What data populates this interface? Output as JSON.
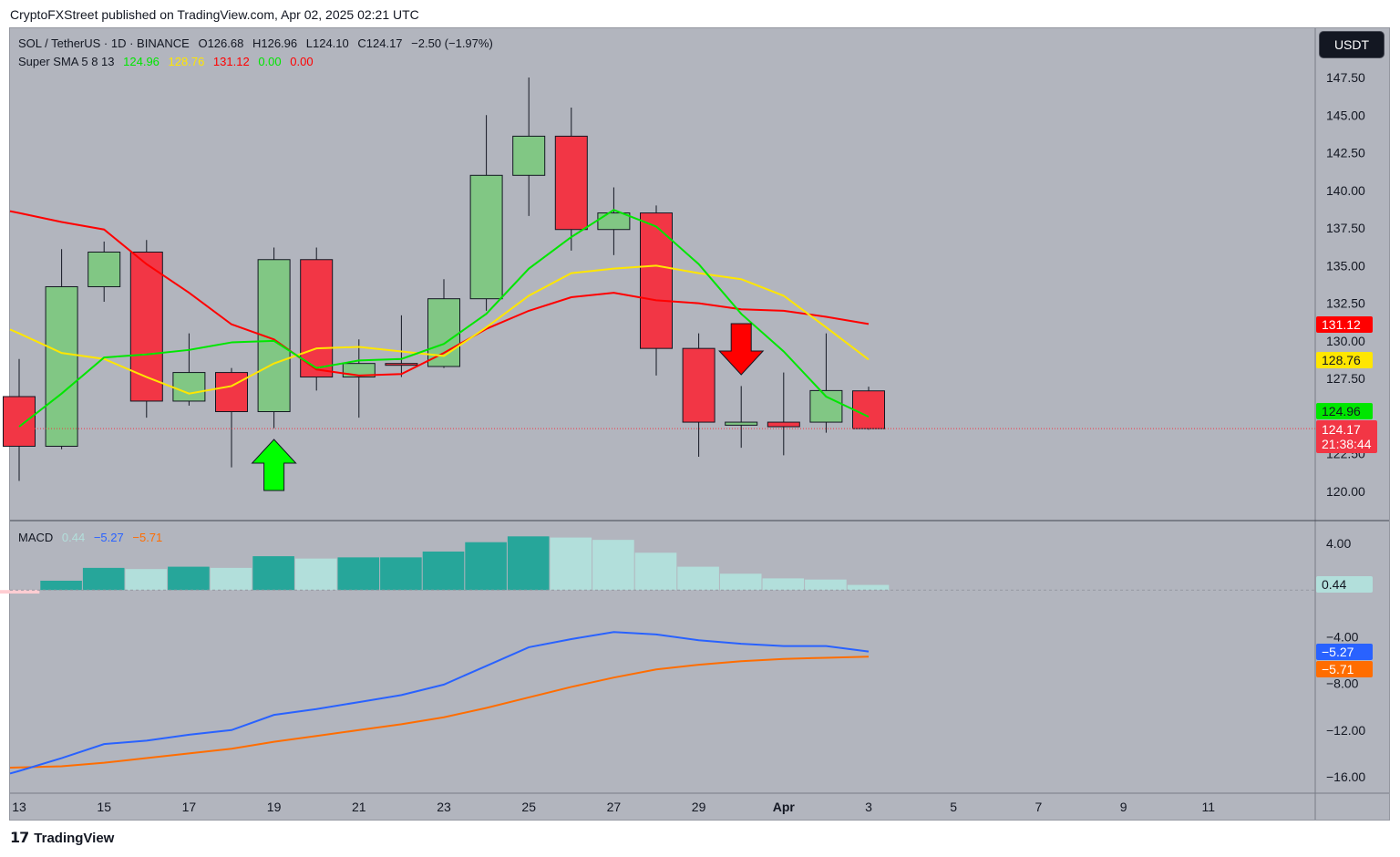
{
  "header": {
    "publisher_text": "CryptoFXStreet published on TradingView.com, Apr 02, 2025 02:21 UTC"
  },
  "legend": {
    "symbol": "SOL / TetherUS · 1D · BINANCE",
    "open": "O126.68",
    "high": "H126.96",
    "low": "L124.10",
    "close": "C124.17",
    "change": "−2.50 (−1.97%)",
    "indicator_name": "Super SMA 5 8 13",
    "sma_values": [
      "124.96",
      "128.76",
      "131.12",
      "0.00",
      "0.00"
    ],
    "macd_name": "MACD",
    "macd_values": [
      "0.44",
      "−5.27",
      "−5.71"
    ]
  },
  "currency_button": "USDT",
  "price_axis_labels": [
    "147.50",
    "145.00",
    "142.50",
    "140.00",
    "137.50",
    "135.00",
    "132.50",
    "130.00",
    "127.50",
    "122.50",
    "120.00"
  ],
  "macd_axis_labels": [
    "4.00",
    "−4.00",
    "−8.00",
    "−12.00",
    "−16.00"
  ],
  "time_axis_labels": [
    "13",
    "15",
    "17",
    "19",
    "21",
    "23",
    "25",
    "27",
    "29",
    "Apr",
    "3",
    "5",
    "7",
    "9",
    "11"
  ],
  "price_tags": {
    "sma13": "131.12",
    "sma8": "128.76",
    "sma5": "124.96",
    "last": "124.17",
    "countdown": "21:38:44",
    "macd_hist": "0.44",
    "macd_line": "−5.27",
    "macd_signal": "−5.71"
  },
  "colors": {
    "background": "#b2b5be",
    "up_candle": "#81c784",
    "down_candle": "#f23645",
    "sma5": "#00e600",
    "sma8": "#ffe600",
    "sma13": "#ff0000",
    "macd_line": "#2962ff",
    "signal_line": "#ff6d00",
    "hist_strong": "#26a69a",
    "hist_weak": "#b2dfdb"
  },
  "footer": {
    "brand": "TradingView"
  },
  "chart_data": {
    "type": "candlestick",
    "symbol": "SOL / TetherUS",
    "interval": "1D",
    "exchange": "BINANCE",
    "dates": [
      "Mar 13",
      "Mar 14",
      "Mar 15",
      "Mar 16",
      "Mar 17",
      "Mar 18",
      "Mar 19",
      "Mar 20",
      "Mar 21",
      "Mar 22",
      "Mar 23",
      "Mar 24",
      "Mar 25",
      "Mar 26",
      "Mar 27",
      "Mar 28",
      "Mar 29",
      "Mar 30",
      "Mar 31",
      "Apr 1",
      "Apr 2"
    ],
    "ohlc": [
      [
        126.3,
        128.8,
        120.7,
        123.0
      ],
      [
        123.0,
        136.1,
        122.8,
        133.6
      ],
      [
        133.6,
        136.6,
        132.6,
        135.9
      ],
      [
        135.9,
        136.7,
        124.9,
        126.0
      ],
      [
        126.0,
        130.5,
        125.7,
        127.9
      ],
      [
        127.9,
        128.2,
        121.6,
        125.3
      ],
      [
        125.3,
        136.2,
        124.2,
        135.4
      ],
      [
        135.4,
        136.2,
        126.7,
        127.6
      ],
      [
        127.6,
        130.1,
        124.9,
        128.5
      ],
      [
        128.5,
        131.7,
        127.6,
        128.4
      ],
      [
        128.3,
        134.1,
        128.2,
        132.8
      ],
      [
        132.8,
        145.0,
        132.0,
        141.0
      ],
      [
        141.0,
        147.5,
        138.3,
        143.6
      ],
      [
        143.6,
        145.5,
        136.0,
        137.4
      ],
      [
        137.4,
        140.2,
        135.7,
        138.5
      ],
      [
        138.5,
        139.0,
        127.7,
        129.5
      ],
      [
        129.5,
        130.5,
        122.3,
        124.6
      ],
      [
        124.4,
        127.0,
        122.9,
        124.6
      ],
      [
        124.6,
        127.9,
        122.4,
        124.3
      ],
      [
        124.6,
        130.5,
        123.9,
        126.7
      ],
      [
        126.68,
        126.96,
        124.1,
        124.17
      ]
    ],
    "sma5": [
      124.3,
      126.5,
      128.9,
      129.1,
      129.4,
      129.9,
      130.0,
      128.2,
      128.7,
      128.8,
      129.8,
      131.8,
      134.8,
      136.9,
      138.7,
      137.6,
      135.1,
      131.8,
      129.3,
      126.3,
      124.96
    ],
    "sma8": [
      130.5,
      129.2,
      128.8,
      127.6,
      126.5,
      127.0,
      128.5,
      129.5,
      129.6,
      129.3,
      129.0,
      130.9,
      133.0,
      134.5,
      134.8,
      135.0,
      134.5,
      134.1,
      133.0,
      130.9,
      128.76
    ],
    "sma13": [
      138.5,
      137.9,
      137.4,
      135.1,
      133.2,
      131.1,
      130.1,
      128.1,
      127.7,
      127.8,
      129.2,
      130.8,
      132.0,
      132.9,
      133.2,
      132.7,
      132.5,
      132.1,
      132.0,
      131.6,
      131.12
    ],
    "signals": [
      {
        "type": "buy-arrow",
        "date": "Mar 19"
      },
      {
        "type": "sell-arrow",
        "date": "Mar 30"
      }
    ],
    "macd": {
      "histogram": [
        -0.3,
        0.8,
        1.9,
        1.8,
        2.0,
        1.9,
        2.9,
        2.7,
        2.8,
        2.8,
        3.3,
        4.1,
        4.6,
        4.5,
        4.3,
        3.2,
        2.0,
        1.4,
        1.0,
        0.9,
        0.44
      ],
      "macd_line": [
        -15.5,
        -14.4,
        -13.2,
        -12.9,
        -12.4,
        -12.0,
        -10.7,
        -10.2,
        -9.6,
        -9.0,
        -8.1,
        -6.5,
        -4.9,
        -4.2,
        -3.6,
        -3.8,
        -4.3,
        -4.6,
        -4.8,
        -4.8,
        -5.27
      ],
      "signal_line": [
        -15.2,
        -15.1,
        -14.8,
        -14.4,
        -14.0,
        -13.6,
        -13.0,
        -12.5,
        -12.0,
        -11.5,
        -10.9,
        -10.1,
        -9.2,
        -8.3,
        -7.5,
        -6.8,
        -6.4,
        -6.1,
        -5.9,
        -5.8,
        -5.71
      ]
    },
    "price_ylim": [
      118.0,
      150.0
    ],
    "macd_ylim": [
      -17.0,
      5.6
    ]
  }
}
